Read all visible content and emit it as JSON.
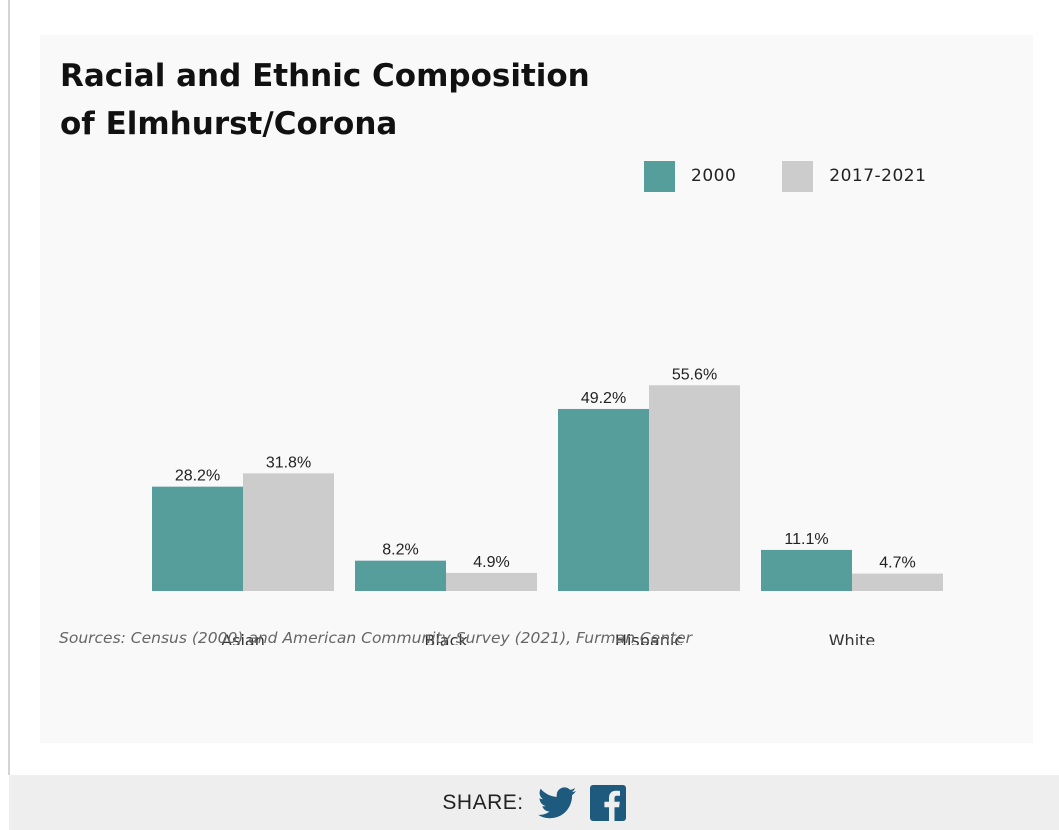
{
  "chart_data": {
    "type": "bar",
    "title": "Racial and Ethnic Composition of Elmhurst/Corona",
    "categories": [
      "Asian",
      "Black",
      "Hispanic",
      "White"
    ],
    "series": [
      {
        "name": "2000",
        "values": [
          28.2,
          8.2,
          49.2,
          11.1
        ],
        "labels": [
          "28.2%",
          "8.2%",
          "49.2%",
          "11.1%"
        ],
        "color": "#559e9c"
      },
      {
        "name": "2017-2021",
        "values": [
          31.8,
          4.9,
          55.6,
          4.7
        ],
        "labels": [
          "31.8%",
          "4.9%",
          "55.6%",
          "4.7%"
        ],
        "color": "#cccccc"
      }
    ],
    "ylim": [
      0,
      60
    ],
    "grid": false,
    "legend": "top-right",
    "source": "Sources: Census (2000) and American Community Survey (2021), Furman Center"
  },
  "share": {
    "label": "SHARE:",
    "twitter_icon": "twitter-icon",
    "facebook_icon": "facebook-icon"
  }
}
